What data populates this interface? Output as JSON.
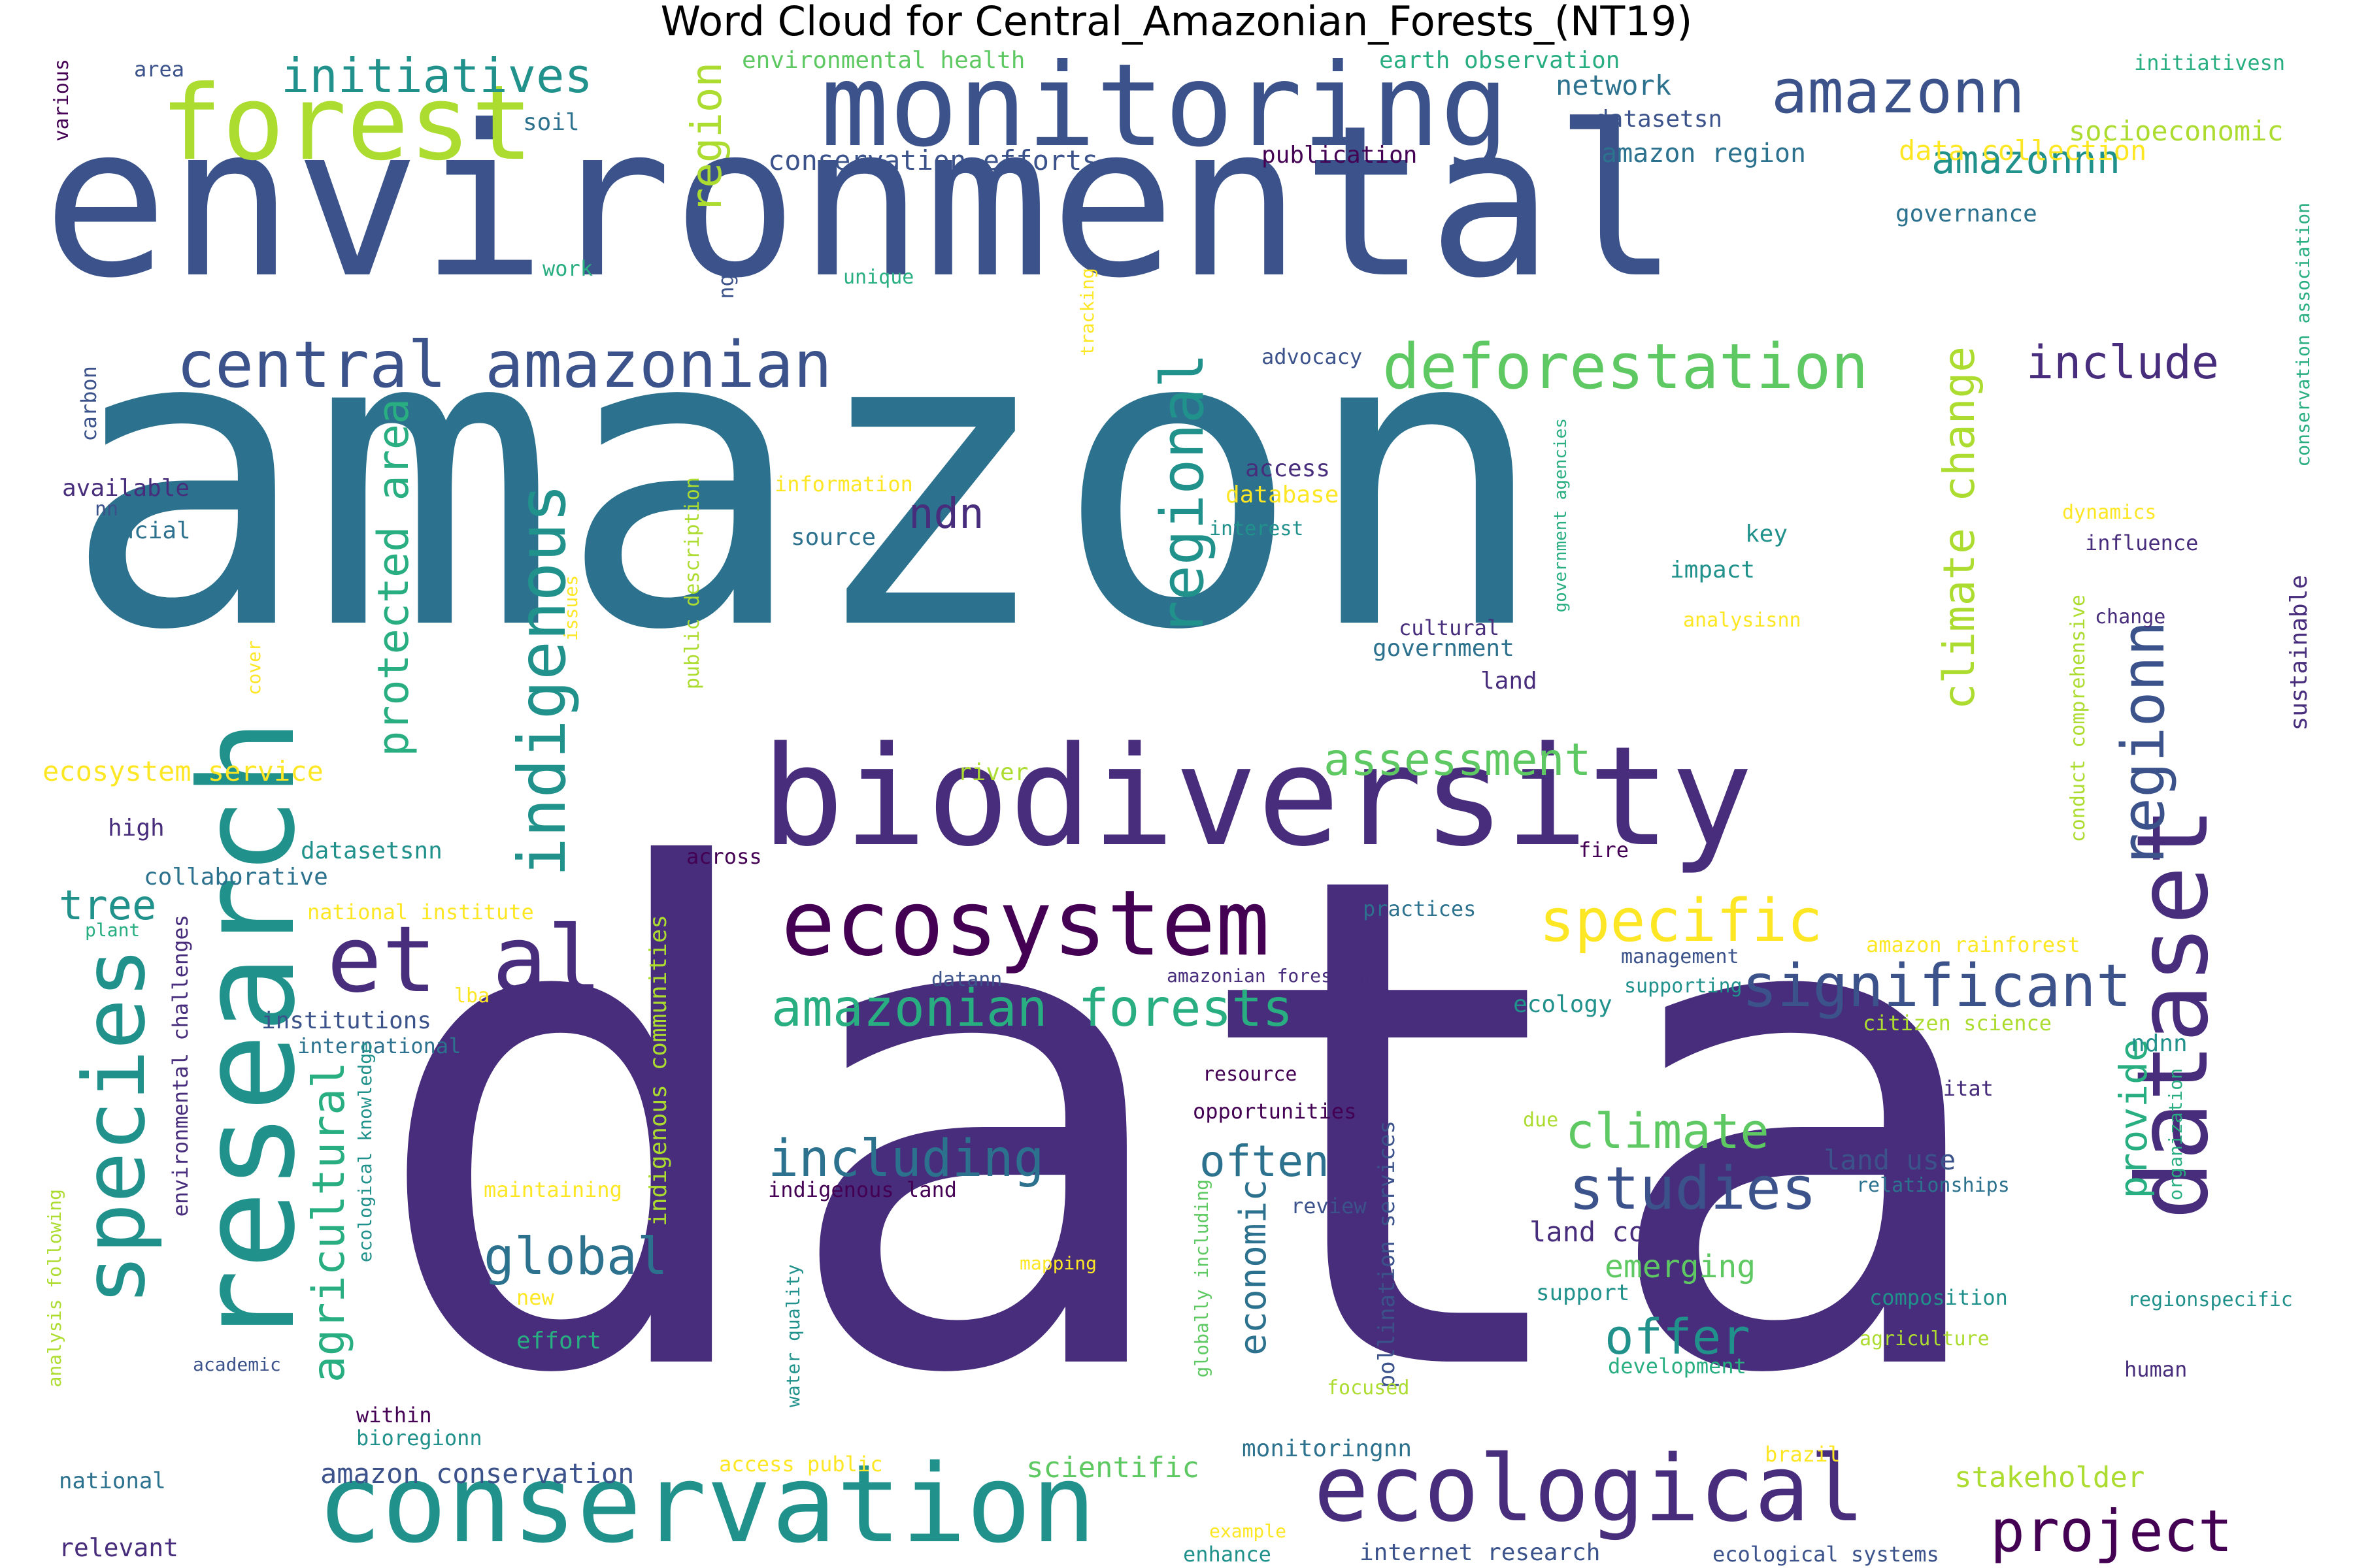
{
  "title": "Word Cloud for Central_Amazonian_Forests_(NT19)",
  "colors": {
    "c1": "#440154",
    "c2": "#472d7b",
    "c3": "#3b528b",
    "c4": "#2c728e",
    "c5": "#21918c",
    "c6": "#28ae80",
    "c7": "#5ec962",
    "c8": "#addc30",
    "c9": "#fde725"
  },
  "words": [
    {
      "text": "data",
      "color": "c2"
    },
    {
      "text": "amazon",
      "color": "c4"
    },
    {
      "text": "environmental",
      "color": "c3"
    },
    {
      "text": "biodiversity",
      "color": "c2"
    },
    {
      "text": "research",
      "color": "c5"
    },
    {
      "text": "dataset",
      "color": "c2"
    },
    {
      "text": "monitoring",
      "color": "c3"
    },
    {
      "text": "conservation",
      "color": "c5"
    },
    {
      "text": "ecological",
      "color": "c2"
    },
    {
      "text": "species",
      "color": "c5"
    },
    {
      "text": "ecosystem",
      "color": "c1"
    },
    {
      "text": "forest",
      "color": "c8"
    },
    {
      "text": "et al",
      "color": "c2"
    },
    {
      "text": "central amazonian",
      "color": "c3"
    },
    {
      "text": "deforestation",
      "color": "c7"
    },
    {
      "text": "amazonn",
      "color": "c3"
    },
    {
      "text": "significant",
      "color": "c3"
    },
    {
      "text": "specific",
      "color": "c9"
    },
    {
      "text": "indigenous",
      "color": "c5"
    },
    {
      "text": "regional",
      "color": "c5"
    },
    {
      "text": "regionn",
      "color": "c3"
    },
    {
      "text": "studies",
      "color": "c3"
    },
    {
      "text": "amazonian forests",
      "color": "c6"
    },
    {
      "text": "project",
      "color": "c1"
    },
    {
      "text": "climate change",
      "color": "c8"
    },
    {
      "text": "agricultural",
      "color": "c6"
    },
    {
      "text": "protected area",
      "color": "c6"
    },
    {
      "text": "initiatives",
      "color": "c5"
    },
    {
      "text": "including",
      "color": "c4"
    },
    {
      "text": "assessment",
      "color": "c7"
    },
    {
      "text": "global",
      "color": "c4"
    },
    {
      "text": "climate",
      "color": "c7"
    },
    {
      "text": "offer",
      "color": "c5"
    },
    {
      "text": "often",
      "color": "c4"
    },
    {
      "text": "economic",
      "color": "c4"
    },
    {
      "text": "include",
      "color": "c2"
    },
    {
      "text": "amazonnn",
      "color": "c5"
    },
    {
      "text": "provide",
      "color": "c6"
    },
    {
      "text": "region",
      "color": "c8"
    },
    {
      "text": "ndn",
      "color": "c2"
    },
    {
      "text": "tree",
      "color": "c5"
    },
    {
      "text": "emerging",
      "color": "c7"
    },
    {
      "text": "stakeholder",
      "color": "c8"
    },
    {
      "text": "conservation efforts",
      "color": "c3"
    },
    {
      "text": "amazon conservation",
      "color": "c3"
    },
    {
      "text": "scientific",
      "color": "c7"
    },
    {
      "text": "environmental challenges",
      "color": "c2"
    },
    {
      "text": "indigenous communities",
      "color": "c8"
    },
    {
      "text": "ecosystem service",
      "color": "c9"
    },
    {
      "text": "land use",
      "color": "c3"
    },
    {
      "text": "land cover",
      "color": "c2"
    },
    {
      "text": "network",
      "color": "c4"
    },
    {
      "text": "socioeconomic",
      "color": "c8"
    },
    {
      "text": "data collection",
      "color": "c9"
    },
    {
      "text": "amazon region",
      "color": "c4"
    },
    {
      "text": "environmental health",
      "color": "c7"
    },
    {
      "text": "earth observation",
      "color": "c6"
    },
    {
      "text": "datasetsn",
      "color": "c3"
    },
    {
      "text": "publication",
      "color": "c1"
    },
    {
      "text": "governance",
      "color": "c4"
    },
    {
      "text": "initiativesn",
      "color": "c6"
    },
    {
      "text": "area",
      "color": "c3"
    },
    {
      "text": "soil",
      "color": "c4"
    },
    {
      "text": "various",
      "color": "c1"
    },
    {
      "text": "work",
      "color": "c6"
    },
    {
      "text": "unique",
      "color": "c6"
    },
    {
      "text": "ngo",
      "color": "c3"
    },
    {
      "text": "tracking",
      "color": "c9"
    },
    {
      "text": "advocacy",
      "color": "c3"
    },
    {
      "text": "carbon",
      "color": "c3"
    },
    {
      "text": "available",
      "color": "c2"
    },
    {
      "text": "nn",
      "color": "c3"
    },
    {
      "text": "crucial",
      "color": "c4"
    },
    {
      "text": "information",
      "color": "c9"
    },
    {
      "text": "source",
      "color": "c4"
    },
    {
      "text": "access",
      "color": "c2"
    },
    {
      "text": "database",
      "color": "c9"
    },
    {
      "text": "interest",
      "color": "c5"
    },
    {
      "text": "key",
      "color": "c5"
    },
    {
      "text": "impact",
      "color": "c5"
    },
    {
      "text": "government agencies",
      "color": "c6"
    },
    {
      "text": "dynamics",
      "color": "c9"
    },
    {
      "text": "influence",
      "color": "c2"
    },
    {
      "text": "sustainable",
      "color": "c2"
    },
    {
      "text": "conservation association",
      "color": "c6"
    },
    {
      "text": "cover",
      "color": "c9"
    },
    {
      "text": "issues",
      "color": "c9"
    },
    {
      "text": "public description",
      "color": "c8"
    },
    {
      "text": "cultural",
      "color": "c2"
    },
    {
      "text": "government",
      "color": "c4"
    },
    {
      "text": "land",
      "color": "c2"
    },
    {
      "text": "analysisnn",
      "color": "c9"
    },
    {
      "text": "change",
      "color": "c2"
    },
    {
      "text": "conduct comprehensive",
      "color": "c8"
    },
    {
      "text": "river",
      "color": "c8"
    },
    {
      "text": "high",
      "color": "c2"
    },
    {
      "text": "datasetsnn",
      "color": "c5"
    },
    {
      "text": "across",
      "color": "c1"
    },
    {
      "text": "fire",
      "color": "c1"
    },
    {
      "text": "collaborative",
      "color": "c4"
    },
    {
      "text": "national institute",
      "color": "c9"
    },
    {
      "text": "plant",
      "color": "c6"
    },
    {
      "text": "practices",
      "color": "c4"
    },
    {
      "text": "management",
      "color": "c3"
    },
    {
      "text": "amazon rainforest",
      "color": "c9"
    },
    {
      "text": "lba",
      "color": "c9"
    },
    {
      "text": "institutions",
      "color": "c3"
    },
    {
      "text": "international",
      "color": "c4"
    },
    {
      "text": "datann",
      "color": "c3"
    },
    {
      "text": "amazonian forestsnn",
      "color": "c2"
    },
    {
      "text": "ecology",
      "color": "c5"
    },
    {
      "text": "supporting",
      "color": "c5"
    },
    {
      "text": "citizen science",
      "color": "c8"
    },
    {
      "text": "ndnn",
      "color": "c5"
    },
    {
      "text": "ecological knowledge",
      "color": "c5"
    },
    {
      "text": "resource",
      "color": "c1"
    },
    {
      "text": "habitat",
      "color": "c2"
    },
    {
      "text": "opportunities",
      "color": "c1"
    },
    {
      "text": "due",
      "color": "c8"
    },
    {
      "text": "organization",
      "color": "c6"
    },
    {
      "text": "relationships",
      "color": "c4"
    },
    {
      "text": "maintaining",
      "color": "c9"
    },
    {
      "text": "indigenous land",
      "color": "c1"
    },
    {
      "text": "review",
      "color": "c3"
    },
    {
      "text": "analysis following",
      "color": "c8"
    },
    {
      "text": "new",
      "color": "c9"
    },
    {
      "text": "mapping",
      "color": "c9"
    },
    {
      "text": "pollination services",
      "color": "c3"
    },
    {
      "text": "support",
      "color": "c5"
    },
    {
      "text": "composition",
      "color": "c5"
    },
    {
      "text": "regionspecific",
      "color": "c5"
    },
    {
      "text": "effort",
      "color": "c6"
    },
    {
      "text": "agriculture",
      "color": "c8"
    },
    {
      "text": "academic",
      "color": "c3"
    },
    {
      "text": "water quality",
      "color": "c5"
    },
    {
      "text": "globally including",
      "color": "c7"
    },
    {
      "text": "focused",
      "color": "c8"
    },
    {
      "text": "development",
      "color": "c6"
    },
    {
      "text": "human",
      "color": "c2"
    },
    {
      "text": "within",
      "color": "c1"
    },
    {
      "text": "bioregionn",
      "color": "c5"
    },
    {
      "text": "monitoringnn",
      "color": "c4"
    },
    {
      "text": "brazil",
      "color": "c9"
    },
    {
      "text": "national",
      "color": "c4"
    },
    {
      "text": "access public",
      "color": "c9"
    },
    {
      "text": "relevant",
      "color": "c2"
    },
    {
      "text": "example",
      "color": "c9"
    },
    {
      "text": "internet research",
      "color": "c3"
    },
    {
      "text": "ecological systems",
      "color": "c3"
    },
    {
      "text": "enhance",
      "color": "c5"
    }
  ]
}
